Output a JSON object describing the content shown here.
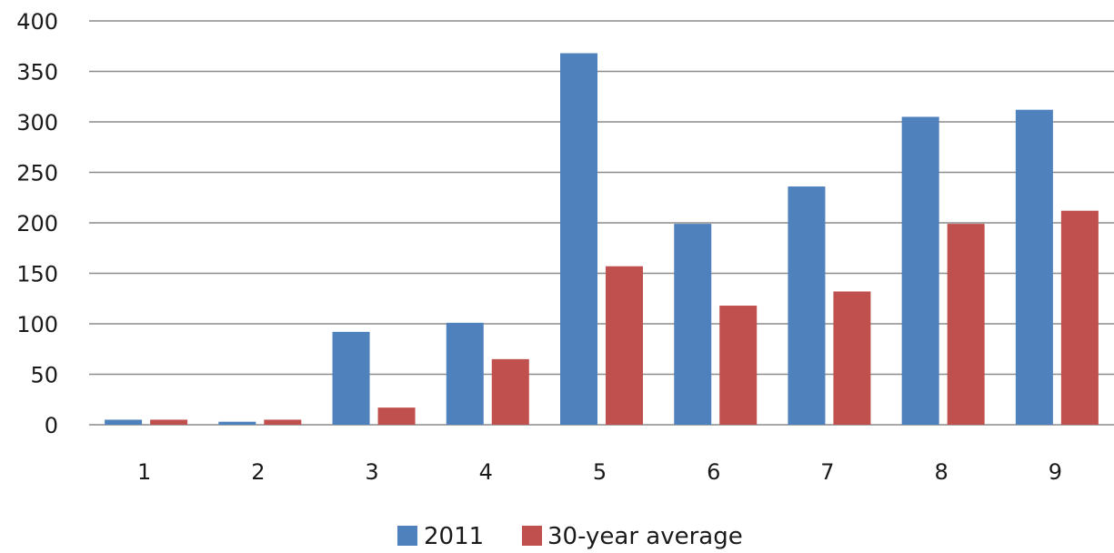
{
  "chart_data": {
    "type": "bar",
    "categories": [
      "1",
      "2",
      "3",
      "4",
      "5",
      "6",
      "7",
      "8",
      "9"
    ],
    "series": [
      {
        "name": "2011",
        "color": "#4f81bd",
        "values": [
          5,
          3,
          92,
          101,
          368,
          199,
          236,
          305,
          312
        ]
      },
      {
        "name": "30-year average",
        "color": "#c0504d",
        "values": [
          5,
          5,
          17,
          65,
          157,
          118,
          132,
          199,
          212
        ]
      }
    ],
    "title": "",
    "xlabel": "",
    "ylabel": "",
    "ylim": [
      0,
      400
    ],
    "yticks": [
      "0",
      "50",
      "100",
      "150",
      "200",
      "250",
      "300",
      "350",
      "400"
    ],
    "grid": true,
    "legend_position": "bottom"
  }
}
